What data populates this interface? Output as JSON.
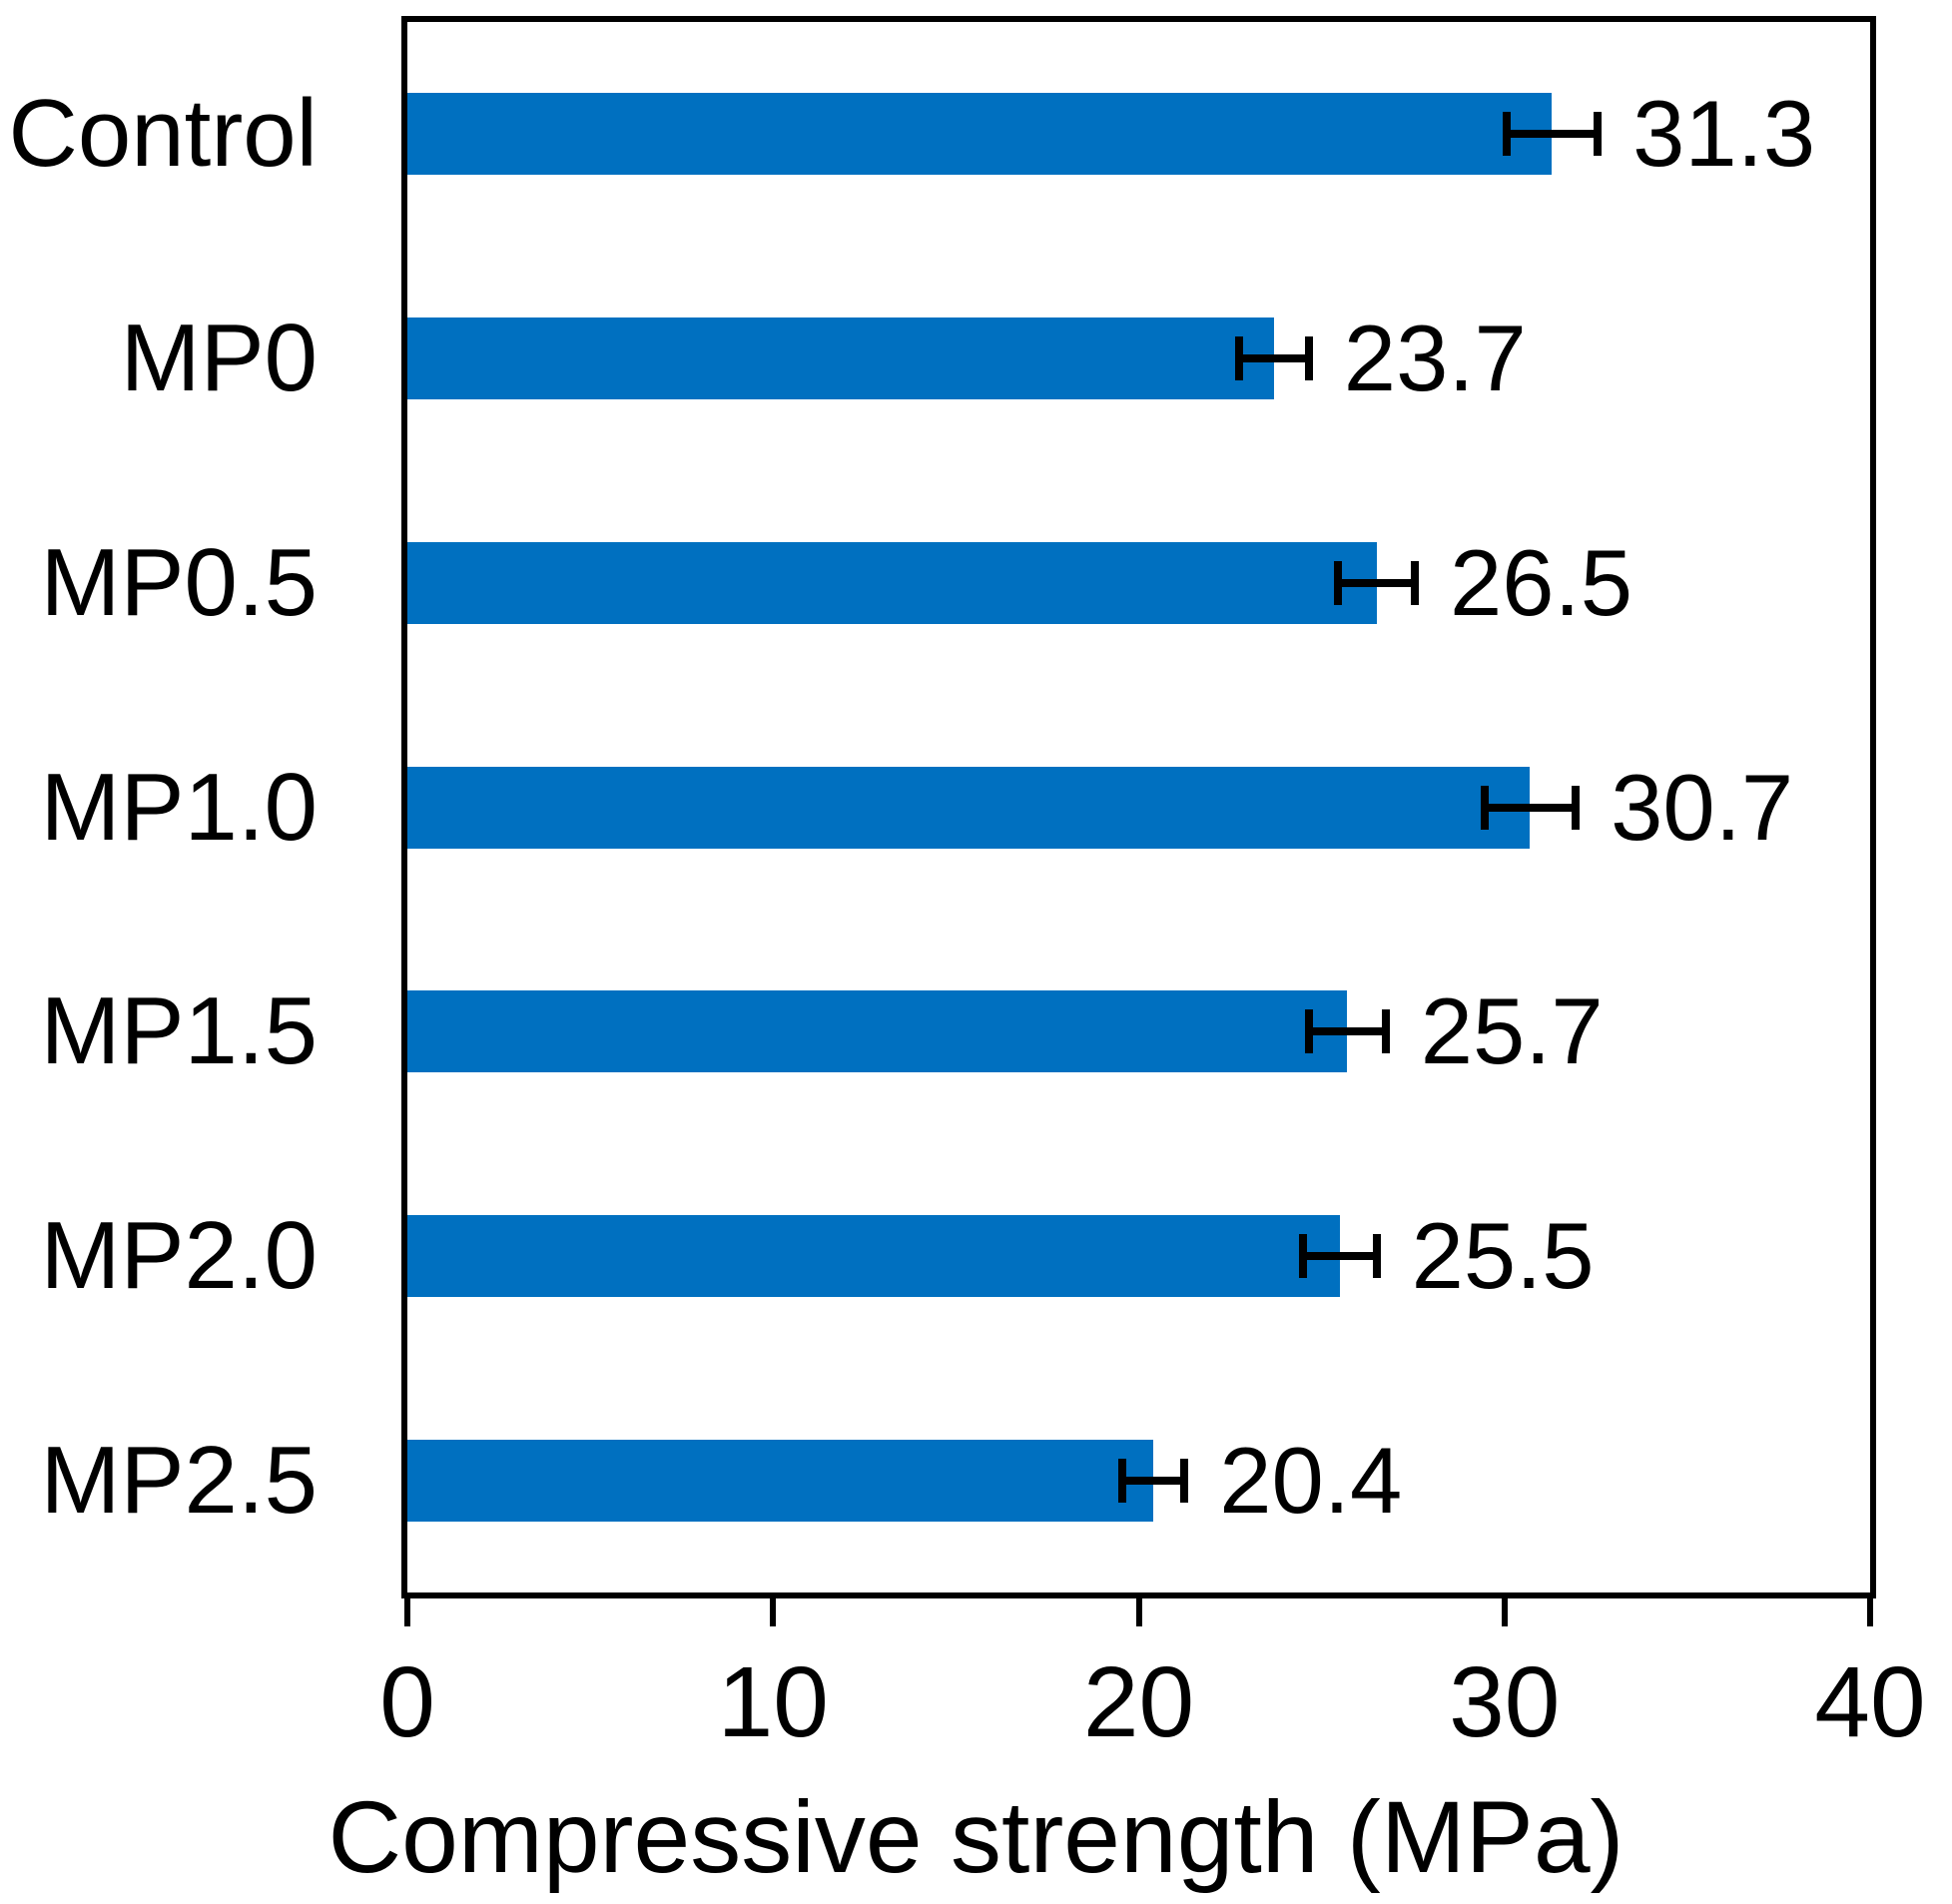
{
  "chart_data": {
    "type": "bar",
    "orientation": "horizontal",
    "title": "",
    "xlabel": "Compressive strength (MPa)",
    "ylabel": "",
    "categories": [
      "Control",
      "MP0",
      "MP0.5",
      "MP1.0",
      "MP1.5",
      "MP2.0",
      "MP2.5"
    ],
    "values": [
      31.3,
      23.7,
      26.5,
      30.7,
      25.7,
      25.5,
      20.4
    ],
    "errors": [
      1.25,
      0.95,
      1.05,
      1.25,
      1.05,
      1.0,
      0.85
    ],
    "value_labels": [
      "31.3",
      "23.7",
      "26.5",
      "30.7",
      "25.7",
      "25.5",
      "20.4"
    ],
    "xlim": [
      0,
      40
    ],
    "xticks": [
      0,
      10,
      20,
      30,
      40
    ],
    "xtick_labels": [
      "0",
      "10",
      "20",
      "30",
      "40"
    ],
    "grid": "off",
    "legend": "none",
    "bar_color": "#0070C0",
    "axis_color": "#000000",
    "text_color": "#000000",
    "background_color": "#FFFFFF"
  }
}
